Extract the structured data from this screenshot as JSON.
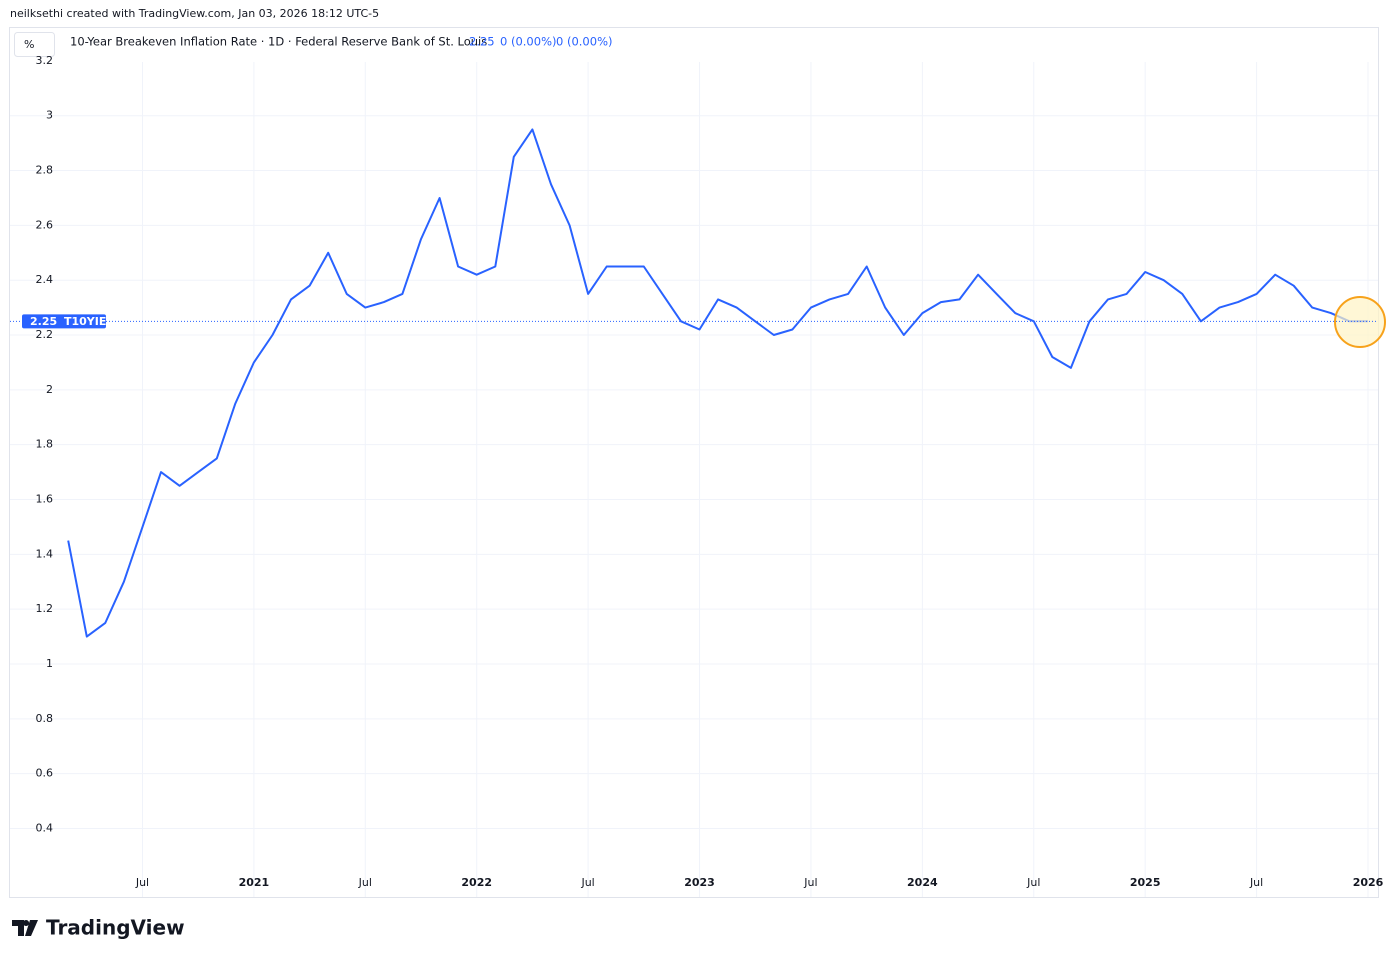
{
  "header": "neilksethi created with TradingView.com, Jan 03, 2026 18:12 UTC-5",
  "brand": "TradingView",
  "chart_data": {
    "type": "line",
    "unit": "%",
    "title": "10-Year Breakeven Inflation Rate · 1D · Federal Reserve Bank of St. Louis",
    "last": 2.25,
    "change": "0 (0.00%)",
    "change2": "0 (0.00%)",
    "symbol": "T10YIE",
    "x": [
      "2020-03",
      "2020-04",
      "2020-05",
      "2020-06",
      "2020-07",
      "2020-08",
      "2020-09",
      "2020-10",
      "2020-11",
      "2020-12",
      "2021-01",
      "2021-02",
      "2021-03",
      "2021-04",
      "2021-05",
      "2021-06",
      "2021-07",
      "2021-08",
      "2021-09",
      "2021-10",
      "2021-11",
      "2021-12",
      "2022-01",
      "2022-02",
      "2022-03",
      "2022-04",
      "2022-05",
      "2022-06",
      "2022-07",
      "2022-08",
      "2022-09",
      "2022-10",
      "2022-11",
      "2022-12",
      "2023-01",
      "2023-02",
      "2023-03",
      "2023-04",
      "2023-05",
      "2023-06",
      "2023-07",
      "2023-08",
      "2023-09",
      "2023-10",
      "2023-11",
      "2023-12",
      "2024-01",
      "2024-02",
      "2024-03",
      "2024-04",
      "2024-05",
      "2024-06",
      "2024-07",
      "2024-08",
      "2024-09",
      "2024-10",
      "2024-11",
      "2024-12",
      "2025-01",
      "2025-02",
      "2025-03",
      "2025-04",
      "2025-05",
      "2025-06",
      "2025-07",
      "2025-08",
      "2025-09",
      "2025-10",
      "2025-11",
      "2025-12",
      "2026-01"
    ],
    "series": [
      {
        "name": "T10YIE",
        "color": "#2962ff",
        "values": [
          1.45,
          1.1,
          1.15,
          1.3,
          1.5,
          1.7,
          1.65,
          1.7,
          1.75,
          1.95,
          2.1,
          2.2,
          2.33,
          2.38,
          2.5,
          2.35,
          2.3,
          2.32,
          2.35,
          2.55,
          2.7,
          2.45,
          2.42,
          2.45,
          2.85,
          2.95,
          2.75,
          2.6,
          2.35,
          2.45,
          2.45,
          2.45,
          2.35,
          2.25,
          2.22,
          2.33,
          2.3,
          2.25,
          2.2,
          2.22,
          2.3,
          2.33,
          2.35,
          2.45,
          2.3,
          2.2,
          2.28,
          2.32,
          2.33,
          2.42,
          2.35,
          2.28,
          2.25,
          2.12,
          2.08,
          2.25,
          2.33,
          2.35,
          2.43,
          2.4,
          2.35,
          2.25,
          2.3,
          2.32,
          2.35,
          2.42,
          2.38,
          2.3,
          2.28,
          2.25,
          2.25
        ]
      }
    ],
    "xlim": [
      "2019-12",
      "2026-01"
    ],
    "xticks": [
      {
        "value": "2020-07",
        "label": "Jul"
      },
      {
        "value": "2021-01",
        "label": "2021"
      },
      {
        "value": "2021-07",
        "label": "Jul"
      },
      {
        "value": "2022-01",
        "label": "2022"
      },
      {
        "value": "2022-07",
        "label": "Jul"
      },
      {
        "value": "2023-01",
        "label": "2023"
      },
      {
        "value": "2023-07",
        "label": "Jul"
      },
      {
        "value": "2024-01",
        "label": "2024"
      },
      {
        "value": "2024-07",
        "label": "Jul"
      },
      {
        "value": "2025-01",
        "label": "2025"
      },
      {
        "value": "2025-07",
        "label": "Jul"
      },
      {
        "value": "2026-01",
        "label": "2026"
      }
    ],
    "ylim": [
      0.15,
      3.32
    ],
    "yticks": [
      0.4,
      0.6,
      0.8,
      1,
      1.2,
      1.4,
      1.6,
      1.8,
      2,
      2.2,
      2.4,
      2.6,
      2.8,
      3,
      3.2
    ],
    "grid": true
  }
}
